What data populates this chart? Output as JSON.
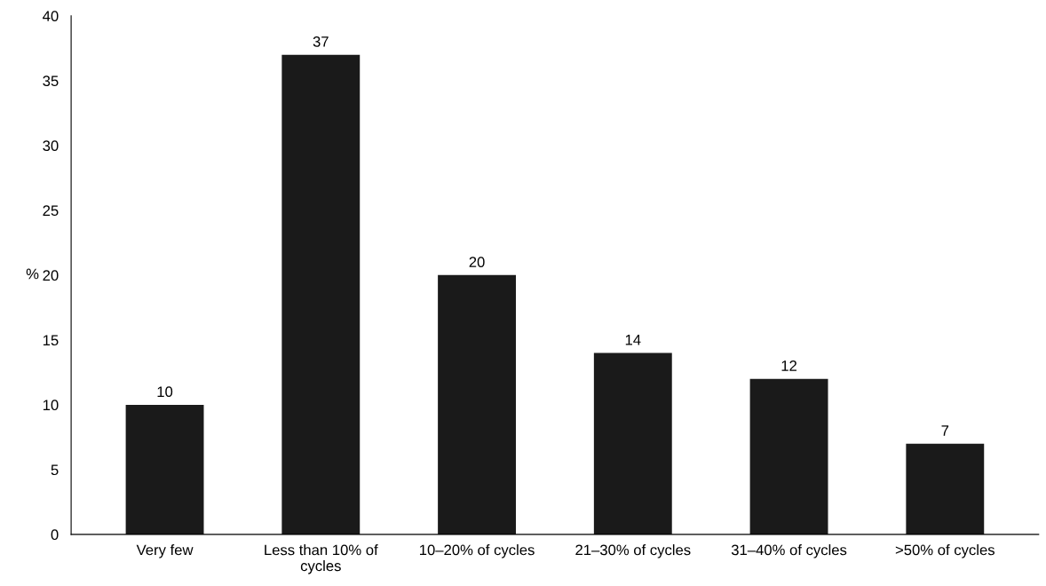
{
  "chart_data": {
    "type": "bar",
    "ylabel": "%",
    "categories": [
      "Very few",
      "Less than 10% of\ncycles",
      "10–20% of cycles",
      "21–30% of cycles",
      "31–40% of cycles",
      ">50% of cycles"
    ],
    "values": [
      10,
      37,
      20,
      14,
      12,
      7
    ],
    "color": "#1a1a1a",
    "ylim": [
      0,
      40
    ],
    "yticks": [
      0,
      5,
      10,
      15,
      20,
      25,
      30,
      35,
      40
    ],
    "data_labels": true,
    "grid": false,
    "legend": false
  }
}
